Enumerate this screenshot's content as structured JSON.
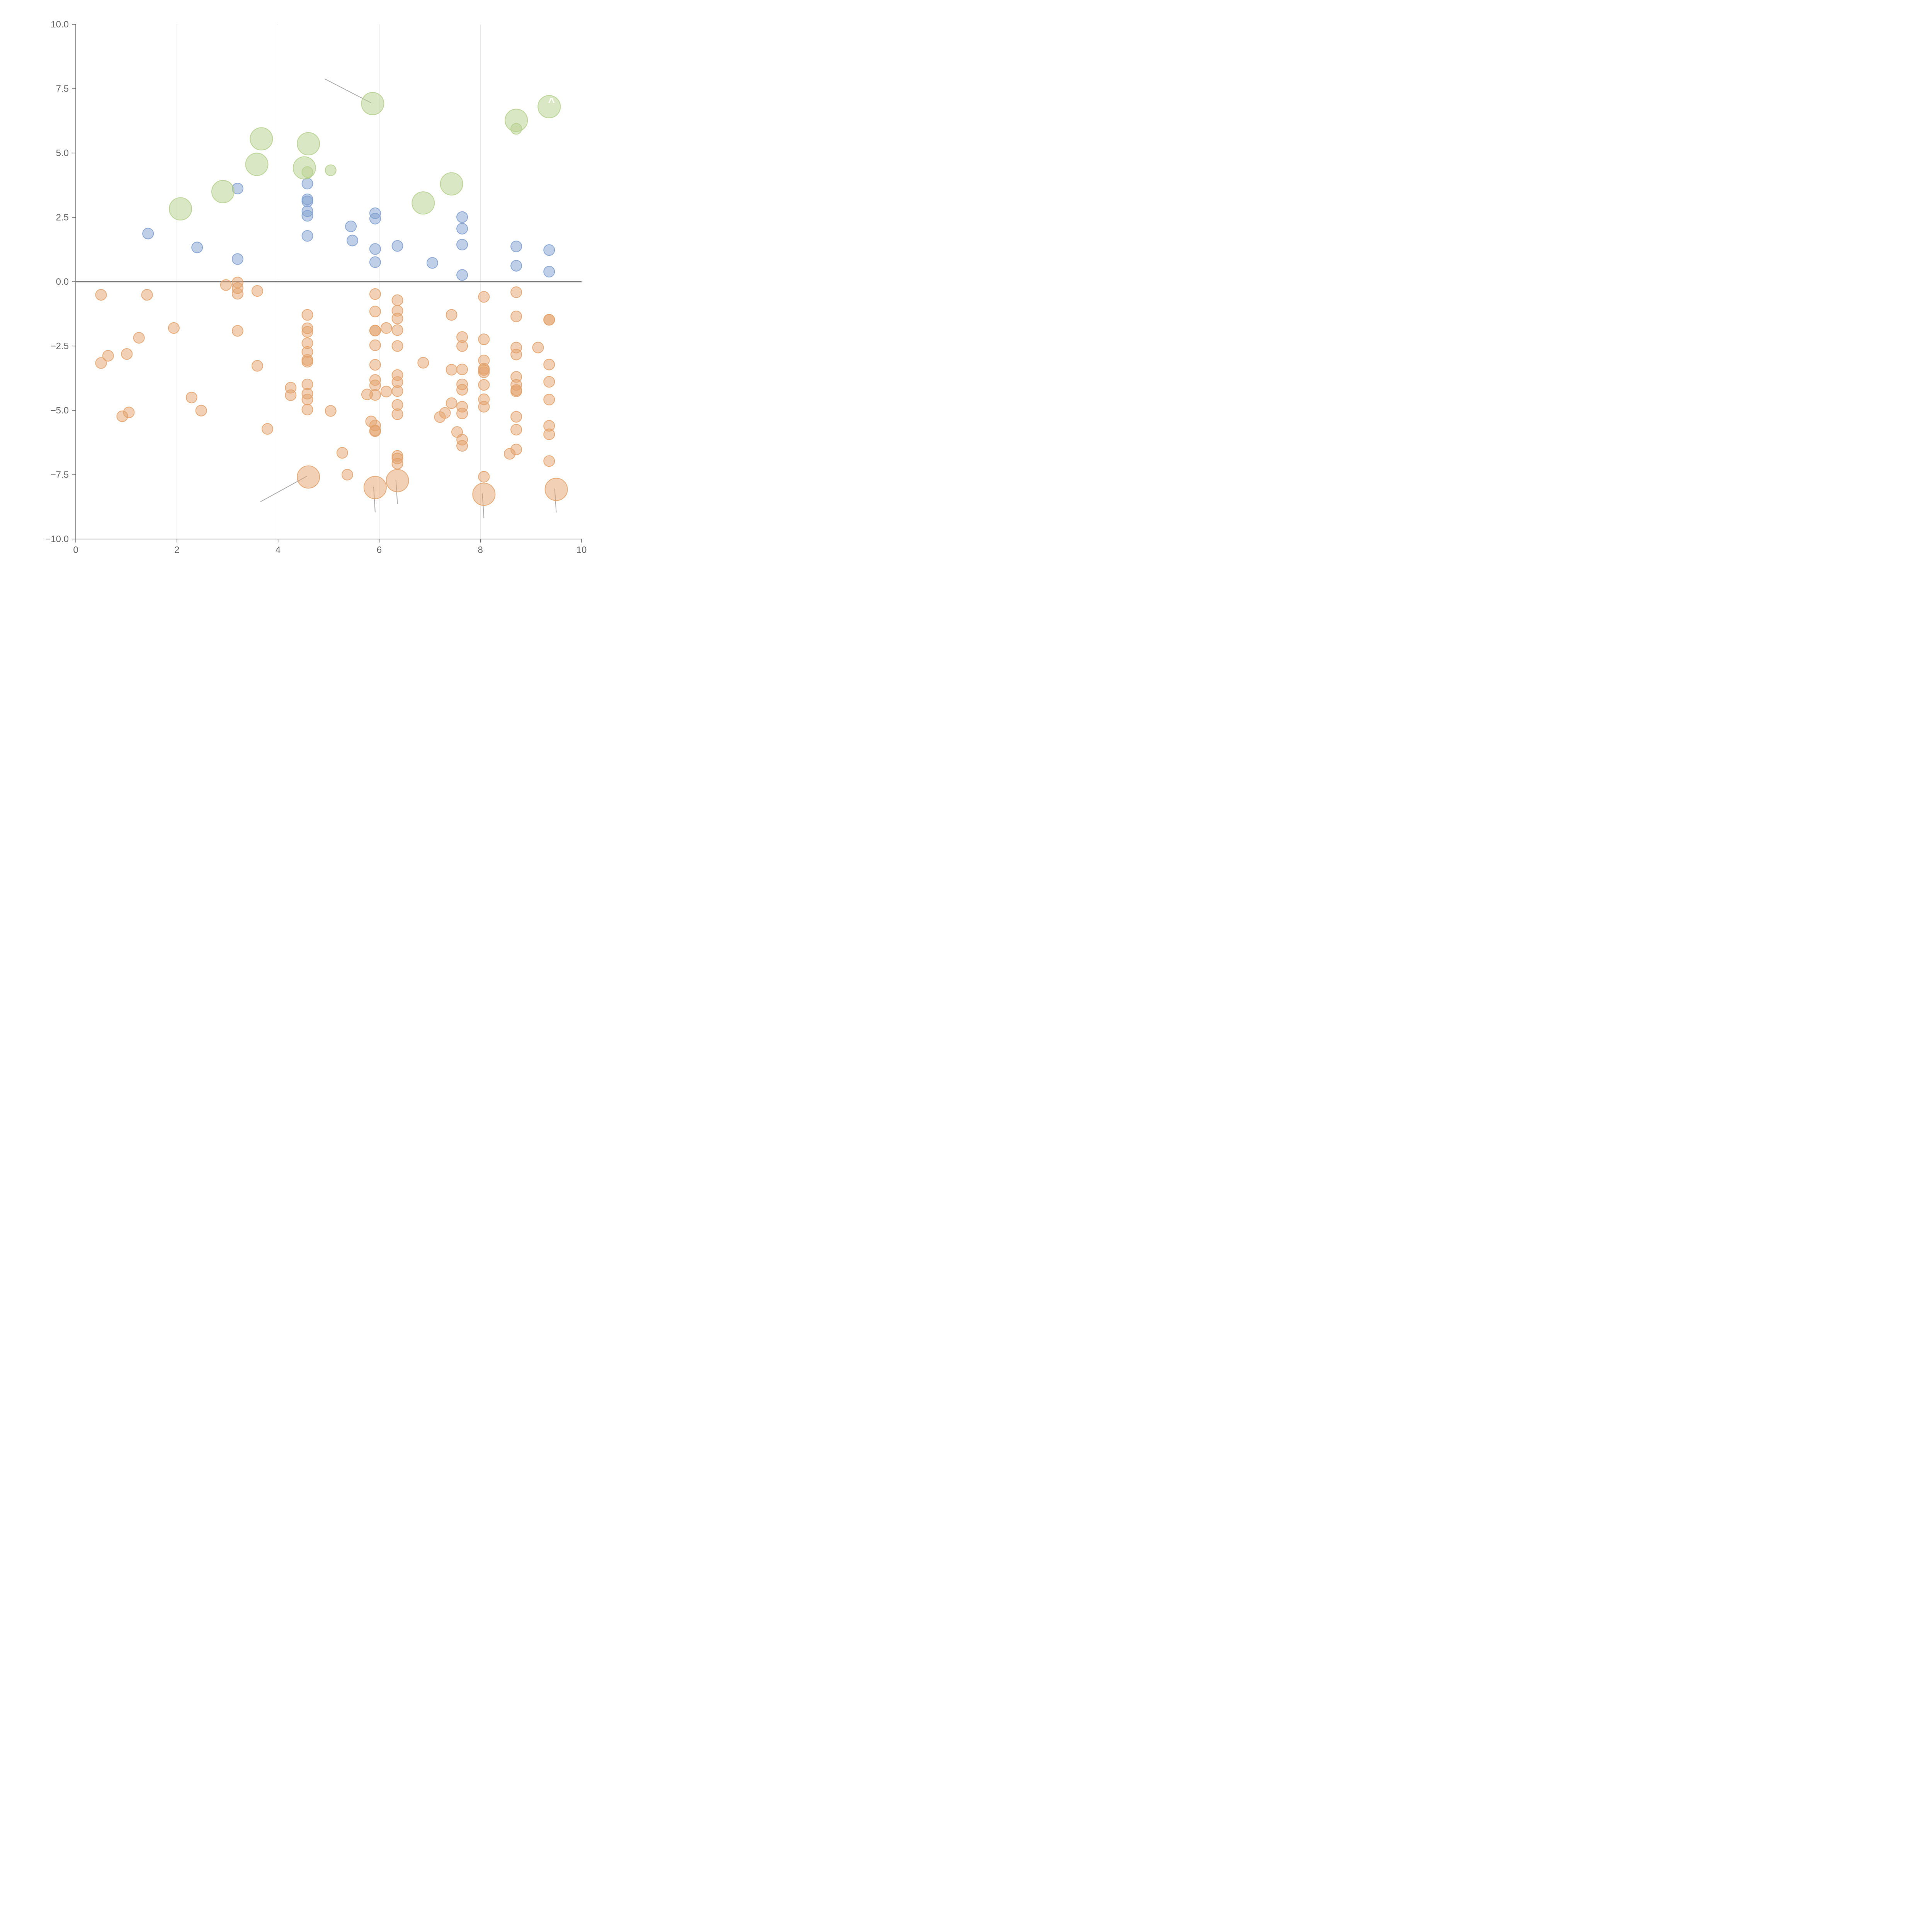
{
  "chart_data": {
    "type": "scatter",
    "title": "",
    "xlabel": "",
    "ylabel": "",
    "xlim": [
      0,
      10
    ],
    "ylim": [
      -10,
      10
    ],
    "x_ticks": [
      0,
      2,
      4,
      6,
      8,
      10
    ],
    "y_ticks": [
      -10.0,
      -7.5,
      -5.0,
      -2.5,
      0.0,
      2.5,
      5.0,
      7.5,
      10.0
    ],
    "x_tick_labels": [
      "0",
      "2",
      "4",
      "6",
      "8",
      "10"
    ],
    "y_tick_labels": [
      "−10.0",
      "−7.5",
      "−5.0",
      "−2.5",
      "0.0",
      "2.5",
      "5.0",
      "7.5",
      "10.0"
    ],
    "grid": "vertical lines at x ticks",
    "reference_line_y": 0,
    "legend": "none",
    "series": [
      {
        "name": "positive",
        "color": "#7f9fd0",
        "size": "small",
        "points": [
          [
            1.43,
            1.87
          ],
          [
            2.4,
            1.33
          ],
          [
            3.2,
            3.62
          ],
          [
            3.2,
            0.88
          ],
          [
            4.58,
            3.81
          ],
          [
            4.58,
            3.2
          ],
          [
            4.58,
            3.12
          ],
          [
            4.58,
            2.74
          ],
          [
            4.58,
            2.56
          ],
          [
            4.58,
            1.78
          ],
          [
            5.44,
            2.15
          ],
          [
            5.47,
            1.6
          ],
          [
            5.92,
            2.66
          ],
          [
            5.92,
            2.45
          ],
          [
            5.92,
            1.27
          ],
          [
            5.92,
            0.76
          ],
          [
            6.36,
            1.39
          ],
          [
            7.05,
            0.73
          ],
          [
            7.64,
            2.51
          ],
          [
            7.64,
            2.06
          ],
          [
            7.64,
            1.44
          ],
          [
            7.64,
            0.26
          ],
          [
            8.71,
            1.37
          ],
          [
            8.71,
            0.62
          ],
          [
            9.36,
            1.23
          ],
          [
            9.36,
            0.39
          ]
        ]
      },
      {
        "name": "negative",
        "color": "#e3a26b",
        "size": "small",
        "points": [
          [
            0.5,
            -0.51
          ],
          [
            0.5,
            -3.16
          ],
          [
            0.64,
            -2.88
          ],
          [
            0.92,
            -5.23
          ],
          [
            1.01,
            -2.81
          ],
          [
            1.05,
            -5.08
          ],
          [
            1.25,
            -2.18
          ],
          [
            1.41,
            -0.51
          ],
          [
            1.94,
            -1.8
          ],
          [
            2.29,
            -4.5
          ],
          [
            2.48,
            -5.01
          ],
          [
            2.97,
            -0.13
          ],
          [
            3.2,
            -0.03
          ],
          [
            3.2,
            -0.25
          ],
          [
            3.2,
            -0.47
          ],
          [
            3.2,
            -1.91
          ],
          [
            3.59,
            -0.36
          ],
          [
            3.59,
            -3.27
          ],
          [
            3.79,
            -5.72
          ],
          [
            4.25,
            -4.12
          ],
          [
            4.25,
            -4.41
          ],
          [
            4.58,
            -1.29
          ],
          [
            4.58,
            -1.81
          ],
          [
            4.58,
            -1.95
          ],
          [
            4.58,
            -2.39
          ],
          [
            4.58,
            -2.73
          ],
          [
            4.58,
            -3.04
          ],
          [
            4.58,
            -3.11
          ],
          [
            4.58,
            -3.99
          ],
          [
            4.58,
            -4.35
          ],
          [
            4.58,
            -4.58
          ],
          [
            4.58,
            -4.97
          ],
          [
            5.04,
            -5.02
          ],
          [
            5.27,
            -6.65
          ],
          [
            5.37,
            -7.5
          ],
          [
            5.76,
            -4.38
          ],
          [
            5.84,
            -5.43
          ],
          [
            5.92,
            -5.59
          ],
          [
            5.92,
            -5.78
          ],
          [
            5.92,
            -5.81
          ],
          [
            5.92,
            -0.48
          ],
          [
            5.92,
            -1.16
          ],
          [
            5.92,
            -1.9
          ],
          [
            5.92,
            -1.9
          ],
          [
            5.92,
            -2.47
          ],
          [
            5.92,
            -3.23
          ],
          [
            5.92,
            -3.82
          ],
          [
            5.92,
            -4.03
          ],
          [
            5.92,
            -4.4
          ],
          [
            6.14,
            -1.8
          ],
          [
            6.14,
            -4.27
          ],
          [
            6.36,
            -0.72
          ],
          [
            6.36,
            -1.13
          ],
          [
            6.36,
            -1.43
          ],
          [
            6.36,
            -1.88
          ],
          [
            6.36,
            -2.5
          ],
          [
            6.36,
            -3.63
          ],
          [
            6.36,
            -3.9
          ],
          [
            6.36,
            -4.25
          ],
          [
            6.36,
            -4.79
          ],
          [
            6.36,
            -5.15
          ],
          [
            6.36,
            -6.77
          ],
          [
            6.36,
            -6.87
          ],
          [
            6.36,
            -7.07
          ],
          [
            6.87,
            -3.15
          ],
          [
            7.2,
            -5.26
          ],
          [
            7.3,
            -5.1
          ],
          [
            7.43,
            -1.29
          ],
          [
            7.43,
            -3.42
          ],
          [
            7.43,
            -4.72
          ],
          [
            7.54,
            -5.84
          ],
          [
            7.64,
            -2.15
          ],
          [
            7.64,
            -2.5
          ],
          [
            7.64,
            -3.41
          ],
          [
            7.64,
            -3.99
          ],
          [
            7.64,
            -4.2
          ],
          [
            7.64,
            -4.86
          ],
          [
            7.64,
            -5.12
          ],
          [
            7.64,
            -6.14
          ],
          [
            7.64,
            -6.38
          ],
          [
            8.07,
            -0.59
          ],
          [
            8.07,
            -2.24
          ],
          [
            8.07,
            -3.06
          ],
          [
            8.07,
            -3.38
          ],
          [
            8.07,
            -3.43
          ],
          [
            8.07,
            -3.52
          ],
          [
            8.07,
            -4.01
          ],
          [
            8.07,
            -4.57
          ],
          [
            8.07,
            -4.86
          ],
          [
            8.07,
            -7.58
          ],
          [
            8.58,
            -6.69
          ],
          [
            8.71,
            -0.41
          ],
          [
            8.71,
            -1.35
          ],
          [
            8.71,
            -2.56
          ],
          [
            8.71,
            -2.83
          ],
          [
            8.71,
            -3.7
          ],
          [
            8.71,
            -4.01
          ],
          [
            8.71,
            -4.21
          ],
          [
            8.71,
            -4.26
          ],
          [
            8.71,
            -5.25
          ],
          [
            8.71,
            -5.75
          ],
          [
            8.71,
            -6.52
          ],
          [
            9.14,
            -2.56
          ],
          [
            9.36,
            -1.48
          ],
          [
            9.36,
            -1.48
          ],
          [
            9.36,
            -3.22
          ],
          [
            9.36,
            -3.89
          ],
          [
            9.36,
            -4.58
          ],
          [
            9.36,
            -5.6
          ],
          [
            9.36,
            -5.93
          ],
          [
            9.36,
            -6.97
          ]
        ]
      },
      {
        "name": "upper-highlight",
        "color": "#b5d08c",
        "size": "large",
        "points": [
          [
            2.07,
            2.83
          ],
          [
            2.91,
            3.5
          ],
          [
            3.58,
            4.56
          ],
          [
            3.67,
            5.55
          ],
          [
            4.52,
            4.42
          ],
          [
            4.6,
            5.36
          ],
          [
            5.87,
            6.92
          ],
          [
            6.87,
            3.06
          ],
          [
            7.43,
            3.8
          ],
          [
            8.71,
            6.27
          ],
          [
            9.36,
            6.8
          ]
        ]
      },
      {
        "name": "upper-highlight-small",
        "color": "#b5d08c",
        "size": "small",
        "points": [
          [
            4.58,
            4.26
          ],
          [
            5.04,
            4.33
          ],
          [
            8.71,
            5.94
          ]
        ]
      },
      {
        "name": "lower-highlight",
        "color": "#e3a26b",
        "size": "large",
        "points": [
          [
            4.6,
            -7.59
          ],
          [
            5.92,
            -8.0
          ],
          [
            6.36,
            -7.73
          ],
          [
            8.07,
            -8.26
          ],
          [
            9.5,
            -8.07
          ]
        ]
      }
    ],
    "annotations": [
      {
        "text": "^",
        "near": [
          9.36,
          6.8
        ]
      },
      {
        "text": "",
        "near": [
          6.87,
          3.06
        ]
      }
    ]
  }
}
